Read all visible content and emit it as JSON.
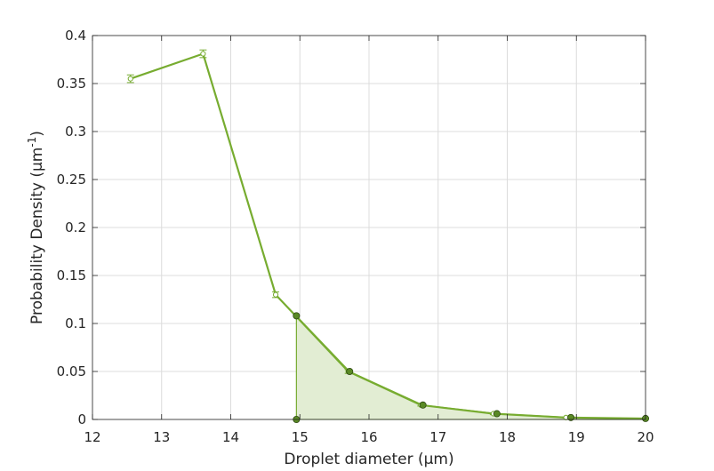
{
  "chart_data": {
    "type": "line",
    "xlabel": "Droplet diameter (μm)",
    "ylabel_main": "Probability Density (μm",
    "ylabel_sup": "-1",
    "ylabel_end": ")",
    "xlim": [
      12,
      20
    ],
    "ylim": [
      0,
      0.4
    ],
    "xticks": [
      12,
      13,
      14,
      15,
      16,
      17,
      18,
      19,
      20
    ],
    "yticks": [
      0,
      0.05,
      0.1,
      0.15,
      0.2,
      0.25,
      0.3,
      0.35,
      0.4
    ],
    "xtick_labels": [
      "12",
      "13",
      "14",
      "15",
      "16",
      "17",
      "18",
      "19",
      "20"
    ],
    "ytick_labels": [
      "0",
      "0.05",
      "0.1",
      "0.15",
      "0.2",
      "0.25",
      "0.3",
      "0.35",
      "0.4"
    ],
    "grid": true,
    "series": [
      {
        "style": "line-with-errorbars",
        "color": "#77AC30",
        "x": [
          12.55,
          13.6,
          14.65,
          15.7,
          16.75,
          17.8,
          18.85,
          20.0
        ],
        "y": [
          0.355,
          0.381,
          0.13,
          0.05,
          0.015,
          0.006,
          0.002,
          0.001
        ],
        "yerr": [
          0.004,
          0.004,
          0.003,
          0.002,
          0.001,
          0.001,
          0.0005,
          0.0005
        ]
      },
      {
        "style": "filled-area-with-markers",
        "color": "#77AC30",
        "fill": "#e2edd3",
        "marker_fill": "#5a8a25",
        "x": [
          14.95,
          14.95,
          15.72,
          16.78,
          17.85,
          18.92,
          20.0
        ],
        "y": [
          0.0,
          0.108,
          0.05,
          0.015,
          0.006,
          0.002,
          0.001
        ]
      }
    ]
  }
}
